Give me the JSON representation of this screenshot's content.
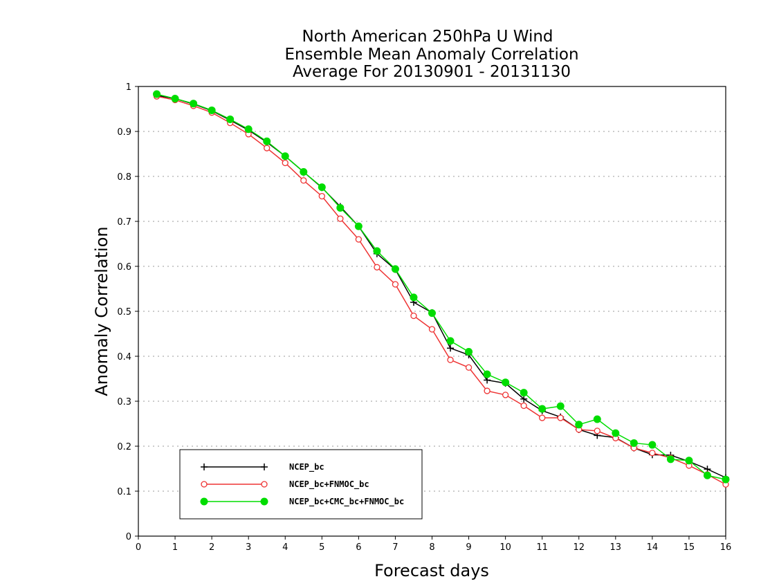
{
  "chart_data": {
    "type": "line",
    "title_lines": [
      "North American 250hPa U Wind",
      "Ensemble Mean Anomaly Correlation",
      "Average For 20130901 - 20131130"
    ],
    "xlabel": "Forecast days",
    "ylabel": "Anomaly Correlation",
    "xlim": [
      0,
      16
    ],
    "ylim": [
      0,
      1
    ],
    "xticks": [
      0,
      1,
      2,
      3,
      4,
      5,
      6,
      7,
      8,
      9,
      10,
      11,
      12,
      13,
      14,
      15,
      16
    ],
    "yticks": [
      0,
      0.1,
      0.2,
      0.3,
      0.4,
      0.5,
      0.6,
      0.7,
      0.8,
      0.9,
      1
    ],
    "grid": "horizontal dotted",
    "legend_position": "bottom-left",
    "x": [
      0.5,
      1,
      1.5,
      2,
      2.5,
      3,
      3.5,
      4,
      4.5,
      5,
      5.5,
      6,
      6.5,
      7,
      7.5,
      8,
      8.5,
      9,
      9.5,
      10,
      10.5,
      11,
      11.5,
      12,
      12.5,
      13,
      13.5,
      14,
      14.5,
      15,
      15.5,
      16
    ],
    "series": [
      {
        "name": "NCEP_bc",
        "color": "#000000",
        "marker": "plus",
        "values": [
          0.98,
          0.973,
          0.961,
          0.946,
          0.925,
          0.903,
          0.876,
          0.845,
          0.81,
          0.775,
          0.733,
          0.689,
          0.628,
          0.593,
          0.52,
          0.497,
          0.418,
          0.403,
          0.347,
          0.34,
          0.305,
          0.279,
          0.265,
          0.237,
          0.224,
          0.219,
          0.196,
          0.181,
          0.18,
          0.166,
          0.149,
          0.13
        ]
      },
      {
        "name": "NCEP_bc+FNMOC_bc",
        "color": "#ee3333",
        "marker": "open-circle",
        "values": [
          0.978,
          0.97,
          0.957,
          0.942,
          0.919,
          0.894,
          0.863,
          0.83,
          0.791,
          0.756,
          0.706,
          0.66,
          0.598,
          0.56,
          0.49,
          0.46,
          0.392,
          0.375,
          0.323,
          0.314,
          0.29,
          0.263,
          0.263,
          0.237,
          0.234,
          0.218,
          0.196,
          0.185,
          0.174,
          0.157,
          0.137,
          0.115
        ]
      },
      {
        "name": "NCEP_bc+CMC_bc+FNMOC_bc",
        "color": "#00dd00",
        "marker": "filled-circle",
        "values": [
          0.983,
          0.973,
          0.962,
          0.947,
          0.927,
          0.905,
          0.878,
          0.845,
          0.81,
          0.776,
          0.73,
          0.689,
          0.634,
          0.594,
          0.531,
          0.496,
          0.434,
          0.41,
          0.36,
          0.342,
          0.319,
          0.283,
          0.289,
          0.248,
          0.26,
          0.229,
          0.207,
          0.203,
          0.171,
          0.168,
          0.135,
          0.126
        ]
      }
    ]
  }
}
